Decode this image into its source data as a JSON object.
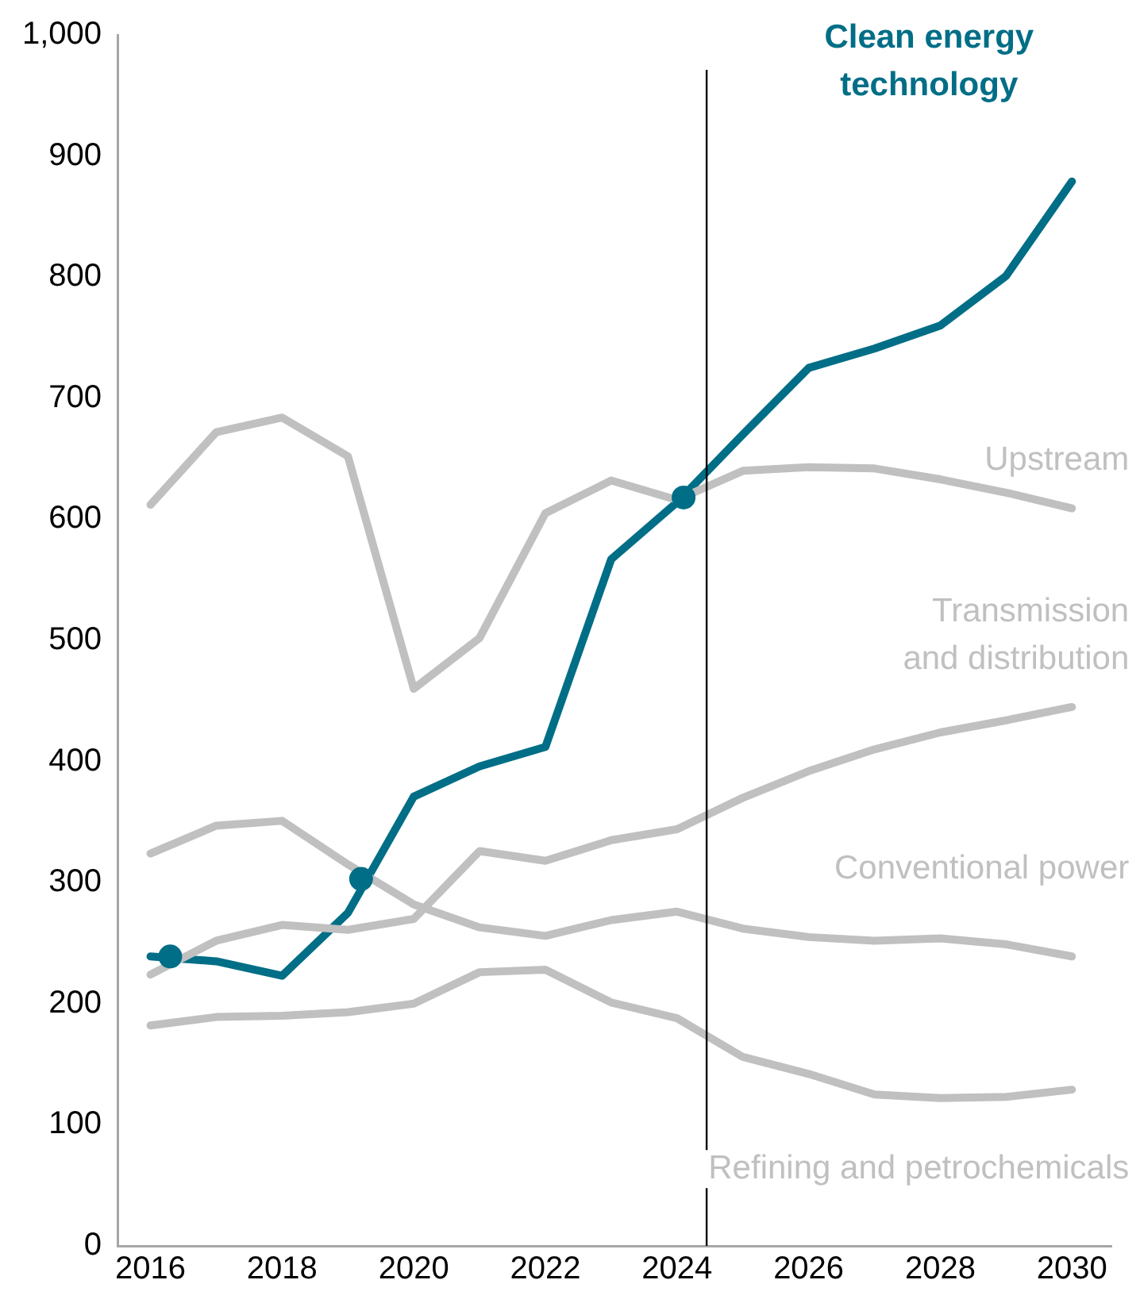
{
  "chart_data": {
    "type": "line",
    "x": [
      2016,
      2017,
      2018,
      2019,
      2020,
      2021,
      2022,
      2023,
      2024,
      2025,
      2026,
      2027,
      2028,
      2029,
      2030
    ],
    "series": [
      {
        "name": "Upstream",
        "color": "#c0c0c0",
        "values": [
          612,
          672,
          684,
          652,
          460,
          502,
          605,
          632,
          616,
          640,
          643,
          642,
          633,
          622,
          609
        ]
      },
      {
        "name": "Transmission and distribution",
        "color": "#c0c0c0",
        "values": [
          224,
          252,
          265,
          261,
          270,
          326,
          318,
          335,
          344,
          370,
          392,
          410,
          424,
          434,
          445
        ]
      },
      {
        "name": "Conventional power",
        "color": "#c0c0c0",
        "values": [
          324,
          347,
          351,
          315,
          282,
          263,
          256,
          269,
          276,
          262,
          255,
          252,
          254,
          249,
          239
        ]
      },
      {
        "name": "Refining and petrochemicals",
        "color": "#c0c0c0",
        "values": [
          182,
          189,
          190,
          193,
          200,
          226,
          228,
          201,
          188,
          156,
          142,
          125,
          122,
          123,
          129
        ]
      },
      {
        "name": "Clean energy technology",
        "color": "#006e86",
        "values": [
          239,
          235,
          223,
          275,
          371,
          396,
          412,
          567,
          614,
          670,
          725,
          741,
          760,
          801,
          879
        ]
      },
      {
        "type": "scatter",
        "color": "#006e86",
        "marker": "circle",
        "x": [
          2016.3,
          2019.2,
          2024.1
        ],
        "values": [
          239,
          303,
          618
        ]
      }
    ],
    "xlim": [
      2015.5,
      2030.6
    ],
    "xticks": [
      2016,
      2018,
      2020,
      2022,
      2024,
      2026,
      2028,
      2030
    ],
    "ylim": [
      0,
      1000
    ],
    "yticks": [
      0,
      100,
      200,
      300,
      400,
      500,
      600,
      700,
      800,
      900,
      {
        "value": 1000,
        "label": "1,000"
      }
    ],
    "ref_lines": [
      {
        "axis": "x",
        "value": 2024.45,
        "color": "#000000"
      }
    ],
    "grid": false,
    "legend": false,
    "marker": "none",
    "line_style": "solid"
  }
}
